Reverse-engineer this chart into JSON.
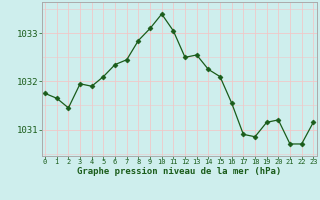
{
  "hours": [
    0,
    1,
    2,
    3,
    4,
    5,
    6,
    7,
    8,
    9,
    10,
    11,
    12,
    13,
    14,
    15,
    16,
    17,
    18,
    19,
    20,
    21,
    22,
    23
  ],
  "pressure": [
    1031.75,
    1031.65,
    1031.45,
    1031.95,
    1031.9,
    1032.1,
    1032.35,
    1032.45,
    1032.85,
    1033.1,
    1033.4,
    1033.05,
    1032.5,
    1032.55,
    1032.25,
    1032.1,
    1031.55,
    1030.9,
    1030.85,
    1031.15,
    1031.2,
    1030.7,
    1030.7,
    1031.15
  ],
  "line_color": "#1a5c1a",
  "marker": "D",
  "marker_size": 2.5,
  "bg_color": "#ceeeed",
  "grid_color": "#f0c8c8",
  "xlabel": "Graphe pression niveau de la mer (hPa)",
  "xlabel_color": "#1a5c1a",
  "tick_label_color": "#1a5c1a",
  "axis_color": "#aaaaaa",
  "ylim": [
    1030.45,
    1033.65
  ],
  "yticks": [
    1031,
    1032,
    1033
  ],
  "figsize": [
    3.2,
    2.0
  ],
  "dpi": 100
}
